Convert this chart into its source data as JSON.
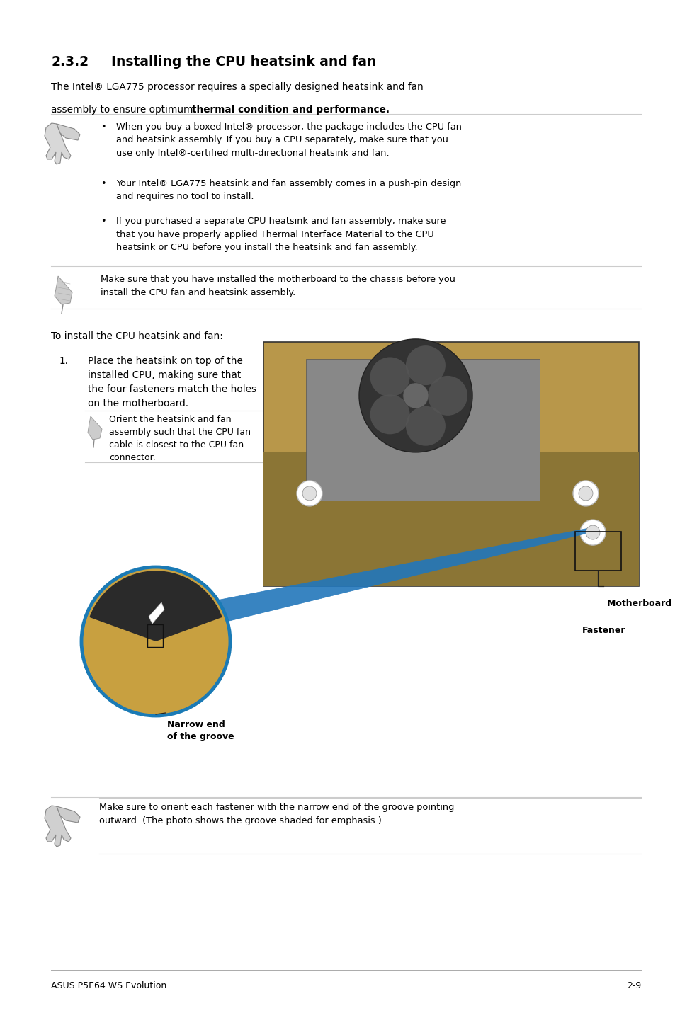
{
  "page_width": 9.54,
  "page_height": 14.38,
  "dpi": 100,
  "bg_color": "#ffffff",
  "lm": 0.72,
  "rm": 9.05,
  "text_color": "#000000",
  "sep_color": "#cccccc",
  "section_number": "2.3.2",
  "section_title": "Installing the CPU heatsink and fan",
  "intro_line1": "The Intel® LGA775 processor requires a specially designed heatsink and fan",
  "intro_line2a": "assembly to ensure optimum ",
  "intro_line2b": "thermal condition and performance.",
  "bullet1": "When you buy a boxed Intel® processor, the package includes the CPU fan\nand heatsink assembly. If you buy a CPU separately, make sure that you\nuse only Intel®-certified multi-directional heatsink and fan.",
  "bullet2": "Your Intel® LGA775 heatsink and fan assembly comes in a push-pin design\nand requires no tool to install.",
  "bullet3": "If you purchased a separate CPU heatsink and fan assembly, make sure\nthat you have properly applied Thermal Interface Material to the CPU\nheatsink or CPU before you install the heatsink and fan assembly.",
  "note1": "Make sure that you have installed the motherboard to the chassis before you\ninstall the CPU fan and heatsink assembly.",
  "to_install": "To install the CPU heatsink and fan:",
  "step1": "Place the heatsink on top of the\ninstalled CPU, making sure that\nthe four fasteners match the holes\non the motherboard.",
  "orient_note": "Orient the heatsink and fan\nassembly such that the CPU fan\ncable is closest to the CPU fan\nconnector.",
  "mb_hole_label": "Motherboard hole",
  "fastener_label": "Fastener",
  "narrow_end_label": "Narrow end\nof the groove",
  "warning_note": "Make sure to orient each fastener with the narrow end of the groove pointing\noutward. (The photo shows the groove shaded for emphasis.)",
  "footer_left": "ASUS P5E64 WS Evolution",
  "footer_right": "2-9",
  "img_color": "#c8a878",
  "img_border": "#444444",
  "zoom_circle_color": "#c8a050",
  "zoom_border_color": "#1a7ab5",
  "blue_arrow_color": "#2277bb"
}
